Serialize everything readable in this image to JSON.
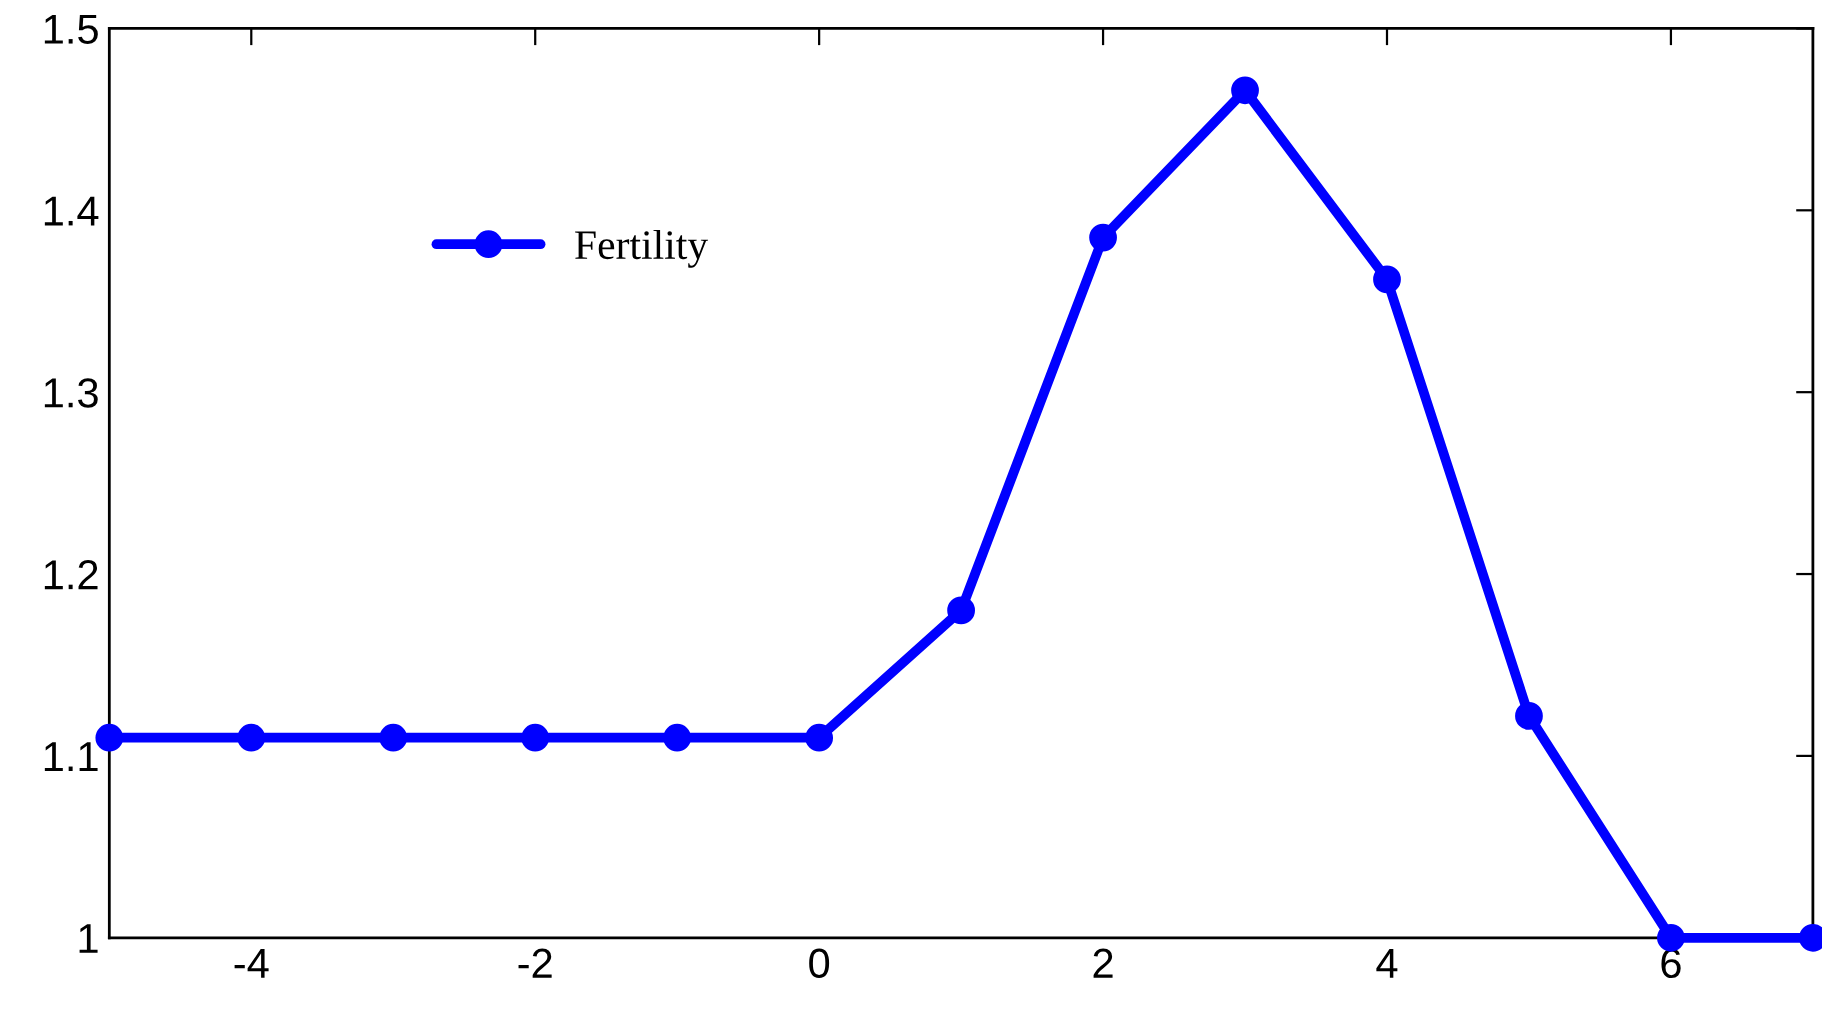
{
  "chart_data": {
    "type": "line",
    "x": [
      -5,
      -4,
      -3,
      -2,
      -1,
      0,
      1,
      2,
      3,
      4,
      5,
      6,
      7
    ],
    "series": [
      {
        "name": "Fertility",
        "color": "#0000ff",
        "values": [
          1.11,
          1.11,
          1.11,
          1.11,
          1.11,
          1.11,
          1.18,
          1.385,
          1.466,
          1.362,
          1.122,
          1.0,
          1.0
        ]
      }
    ],
    "xlim": [
      -5,
      7
    ],
    "xticks": [
      -4,
      -2,
      0,
      2,
      4,
      6
    ],
    "ylim": [
      1,
      1.5
    ],
    "yticks": [
      1,
      1.1,
      1.2,
      1.3,
      1.4,
      1.5
    ],
    "legend": "top left",
    "marker": "circle",
    "line_style": "solid",
    "grid": false
  }
}
